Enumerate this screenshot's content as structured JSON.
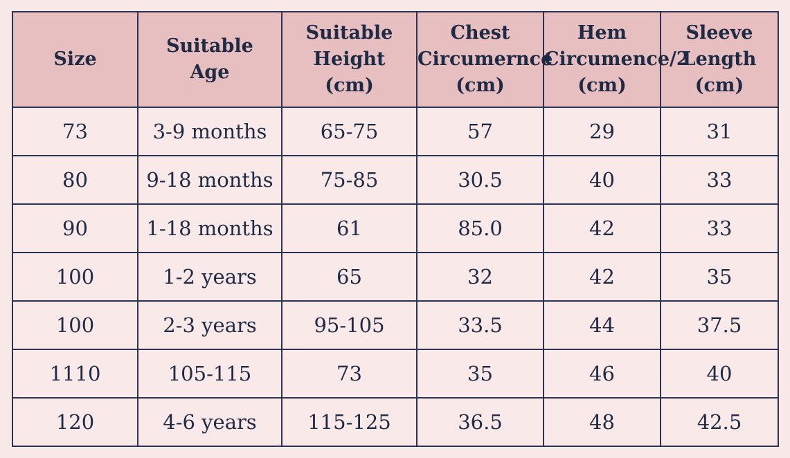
{
  "table": {
    "columns": [
      [
        "Size"
      ],
      [
        "Suitable",
        "Age"
      ],
      [
        "Suitable",
        "Height",
        "(cm)"
      ],
      [
        "Chest",
        "Circumernce",
        "(cm)"
      ],
      [
        "Hem",
        "Circumence/2",
        "(cm)"
      ],
      [
        "Sleeve",
        "Length",
        "(cm)"
      ]
    ],
    "rows": [
      [
        "73",
        "3-9 months",
        "65-75",
        "57",
        "29",
        "31"
      ],
      [
        "80",
        "9-18 months",
        "75-85",
        "30.5",
        "40",
        "33"
      ],
      [
        "90",
        "1-18 months",
        "61",
        "85.0",
        "42",
        "33"
      ],
      [
        "100",
        "1-2 years",
        "65",
        "32",
        "42",
        "35"
      ],
      [
        "100",
        "2-3 years",
        "95-105",
        "33.5",
        "44",
        "37.5"
      ],
      [
        "1110",
        "105-115",
        "73",
        "35",
        "46",
        "40"
      ],
      [
        "120",
        "4-6 years",
        "115-125",
        "36.5",
        "48",
        "42.5"
      ]
    ]
  }
}
